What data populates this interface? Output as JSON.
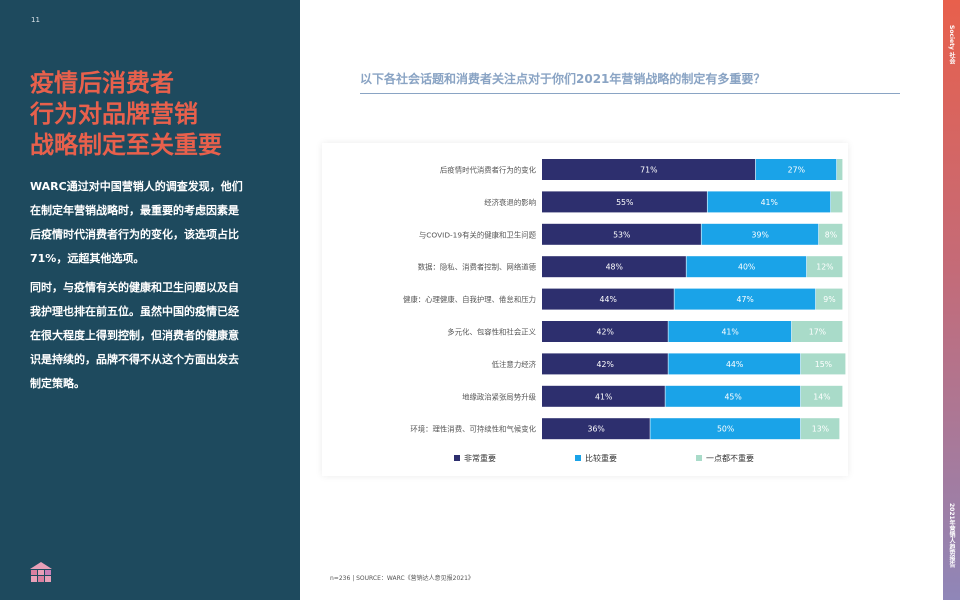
{
  "page_number": "11",
  "headline_lines": [
    "疫情后消费者",
    "行为对品牌营销",
    "战略制定至关重要"
  ],
  "paragraph1_lines": [
    "WARC通过对中国营销人的调查发现，他们",
    "在制定年营销战略时，最重要的考虑因素是",
    "后疫情时代消费者行为的变化，该选项占比",
    "71%，远超其他选项。"
  ],
  "paragraph2_lines": [
    "同时，与疫情有关的健康和卫生问题以及自",
    "我护理也排在前五位。虽然中国的疫情已经",
    "在很大程度上得到控制，但消费者的健康意",
    "识是持续的，品牌不得不从这个方面出发去",
    "制定策略。"
  ],
  "strip_top_text": "Society 社会",
  "strip_bottom_text": "2021年营销人趋势报告",
  "question": "以下各社会话题和消费者关注点对于你们2021年营销战略的制定有多重要？",
  "source": "n=236 | SOURCE：WARC《营销达人意见报2021》",
  "colors": {
    "very": "#2d2f6e",
    "somewhat": "#1aa3e8",
    "not": "#a9dbc9",
    "headline": "#e8604c",
    "panel": "#1e4a5e"
  },
  "chart_data": {
    "type": "bar",
    "orientation": "horizontal",
    "stacked": true,
    "percent_scale": true,
    "categories": [
      "后疫情时代消费者行为的变化",
      "经济衰退的影响",
      "与COVID-19有关的健康和卫生问题",
      "数据：隐私、消费者控制、网络道德",
      "健康：心理健康、自我护理、倦怠和压力",
      "多元化、包容性和社会正义",
      "低注意力经济",
      "地缘政治紧张局势升级",
      "环境：理性消费、可持续性和气候变化"
    ],
    "series": [
      {
        "name": "非常重要",
        "values": [
          71,
          55,
          53,
          48,
          44,
          42,
          42,
          41,
          36
        ],
        "labels": [
          "71%",
          "55%",
          "53%",
          "48%",
          "44%",
          "42%",
          "42%",
          "41%",
          "36%"
        ]
      },
      {
        "name": "比较重要",
        "values": [
          27,
          41,
          39,
          40,
          47,
          41,
          44,
          45,
          50
        ],
        "labels": [
          "27%",
          "41%",
          "39%",
          "40%",
          "47%",
          "41%",
          "44%",
          "45%",
          "50%"
        ]
      },
      {
        "name": "一点都不重要",
        "values": [
          2,
          4,
          8,
          12,
          9,
          17,
          15,
          14,
          13
        ],
        "labels": [
          "",
          "",
          "8%",
          "12%",
          "9%",
          "17%",
          "15%",
          "14%",
          "13%"
        ]
      }
    ],
    "xlim": [
      0,
      100
    ],
    "legend_position": "bottom",
    "grid": false
  }
}
